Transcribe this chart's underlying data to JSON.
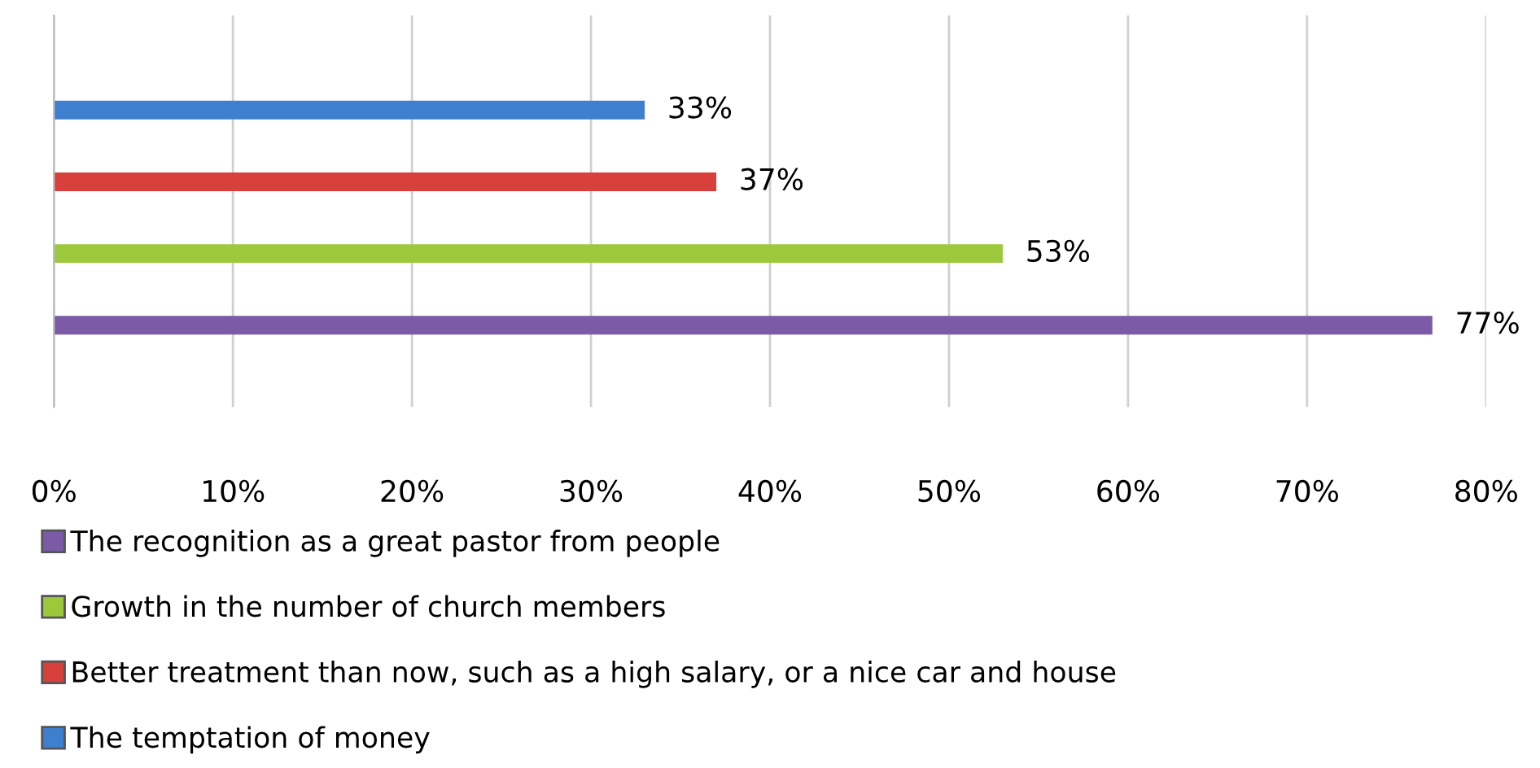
{
  "chart_data": {
    "type": "bar",
    "orientation": "horizontal",
    "categories": [
      null
    ],
    "series": [
      {
        "name": "The recognition as a great pastor from people",
        "color": "#7b5ba8",
        "values": [
          77
        ],
        "value_labels": [
          "77%"
        ]
      },
      {
        "name": "Growth in the number of church members",
        "color": "#9cc83b",
        "values": [
          53
        ],
        "value_labels": [
          "53%"
        ]
      },
      {
        "name": "Better treatment than now, such as a high salary, or a nice car and house",
        "color": "#d8413b",
        "values": [
          37
        ],
        "value_labels": [
          "37%"
        ]
      },
      {
        "name": "The temptation of money",
        "color": "#3f7fd0",
        "values": [
          33
        ],
        "value_labels": [
          "33%"
        ]
      }
    ],
    "xlim": [
      0,
      80
    ],
    "xticks": [
      {
        "value": 0,
        "label": "0%"
      },
      {
        "value": 10,
        "label": "10%"
      },
      {
        "value": 20,
        "label": "20%"
      },
      {
        "value": 30,
        "label": "30%"
      },
      {
        "value": 40,
        "label": "40%"
      },
      {
        "value": 50,
        "label": "50%"
      },
      {
        "value": 60,
        "label": "60%"
      },
      {
        "value": 70,
        "label": "70%"
      },
      {
        "value": 80,
        "label": "80%"
      }
    ],
    "grid": "x",
    "legend": "bottom",
    "tick_labels": "x"
  }
}
